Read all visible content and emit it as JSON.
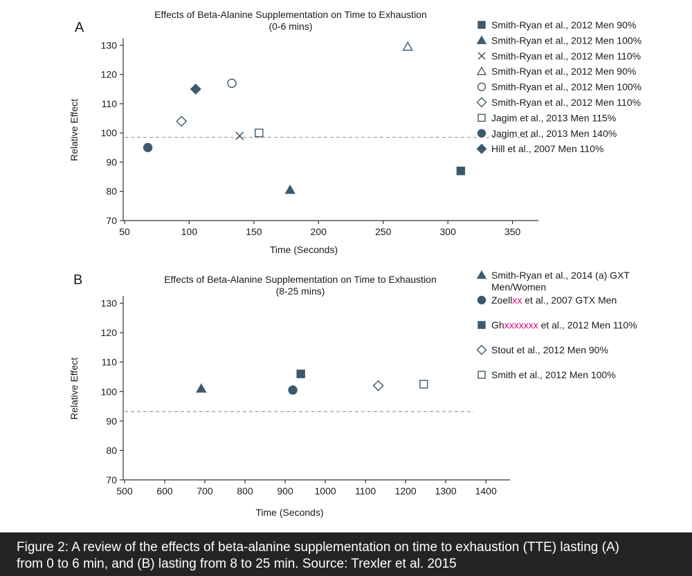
{
  "colors": {
    "marker": "#3c5a6e",
    "redacted": "#e0007a",
    "axis": "#333333",
    "reference_line": "#9a9a9a",
    "caption_bg": "#242424"
  },
  "chart_data": [
    {
      "type": "scatter",
      "panel_label": "A",
      "title": "Effects of Beta-Alanine Supplementation on Time to Exhaustion",
      "subtitle": "(0-6 mins)",
      "xlabel": "Time (Seconds)",
      "ylabel": "Relative Effect",
      "xlim": [
        50,
        370
      ],
      "ylim": [
        70,
        132
      ],
      "xticks": [
        "50",
        "100",
        "150",
        "200",
        "250",
        "300",
        "350"
      ],
      "yticks": [
        "70",
        "80",
        "90",
        "100",
        "110",
        "120",
        "130"
      ],
      "reference_line": {
        "y": 98.5,
        "x_range": [
          50,
          368
        ],
        "style": "dashed"
      },
      "grid": false,
      "legend_position": "right",
      "series": [
        {
          "name": "Smith-Ryan et al., 2012 Men 90%",
          "marker": "square-filled",
          "points": [
            {
              "x": 310,
              "y": 87
            }
          ]
        },
        {
          "name": "Smith-Ryan et al., 2012 Men 100%",
          "marker": "triangle-filled",
          "points": [
            {
              "x": 178,
              "y": 80.5
            }
          ]
        },
        {
          "name": "Smith-Ryan et al., 2012 Men 110%",
          "marker": "x",
          "points": [
            {
              "x": 139,
              "y": 99
            }
          ]
        },
        {
          "name": "Smith-Ryan et al., 2012 Men 90%",
          "marker": "triangle-open",
          "points": [
            {
              "x": 269,
              "y": 129.5
            }
          ]
        },
        {
          "name": "Smith-Ryan et al., 2012 Men 100%",
          "marker": "circle-open",
          "points": [
            {
              "x": 133,
              "y": 117
            }
          ]
        },
        {
          "name": "Smith-Ryan et al., 2012 Men 110%",
          "marker": "diamond-open",
          "points": [
            {
              "x": 94,
              "y": 104
            }
          ]
        },
        {
          "name": "Jagim et al., 2013 Men 115%",
          "marker": "square-open",
          "points": [
            {
              "x": 154,
              "y": 100
            }
          ]
        },
        {
          "name": "Jagim et al., 2013 Men 140%",
          "marker": "circle-filled",
          "points": [
            {
              "x": 68,
              "y": 95
            }
          ]
        },
        {
          "name": "Hill et al., 2007 Men 110%",
          "marker": "diamond-filled",
          "points": [
            {
              "x": 105,
              "y": 115
            }
          ]
        }
      ]
    },
    {
      "type": "scatter",
      "panel_label": "B",
      "title": "Effects of Beta-Alanine Supplementation on Time to Exhaustion",
      "subtitle": "(8-25 mins)",
      "xlabel": "Time (Seconds)",
      "ylabel": "Relative Effect",
      "xlim": [
        500,
        1460
      ],
      "ylim": [
        70,
        132
      ],
      "xticks": [
        "500",
        "600",
        "700",
        "800",
        "900",
        "1000",
        "1100",
        "1200",
        "1300",
        "1400"
      ],
      "yticks": [
        "70",
        "80",
        "90",
        "100",
        "110",
        "120",
        "130"
      ],
      "reference_line": {
        "y": 93.2,
        "x_range": [
          500,
          1370
        ],
        "style": "dashed"
      },
      "grid": false,
      "legend_position": "right",
      "series": [
        {
          "name_parts": [
            {
              "text": "Smith-Ryan et al., 2014 (a) GXT"
            }
          ],
          "name_line2": "Men/Women",
          "marker": "triangle-filled",
          "points": [
            {
              "x": 691,
              "y": 101
            }
          ]
        },
        {
          "name_parts": [
            {
              "text": "Zoell"
            },
            {
              "text": "xx",
              "redacted": true
            },
            {
              "text": " et al., 2007 GTX Men"
            }
          ],
          "marker": "circle-filled",
          "points": [
            {
              "x": 919,
              "y": 100.5
            }
          ]
        },
        {
          "name_parts": [
            {
              "text": "Gh"
            },
            {
              "text": "xxxxxxx",
              "redacted": true
            },
            {
              "text": " et al., 2012 Men 110%"
            }
          ],
          "marker": "square-filled",
          "points": [
            {
              "x": 939,
              "y": 106
            }
          ]
        },
        {
          "name_parts": [
            {
              "text": "Stout et al., 2012 Men 90%"
            }
          ],
          "marker": "diamond-open",
          "points": [
            {
              "x": 1132,
              "y": 102
            }
          ]
        },
        {
          "name_parts": [
            {
              "text": "Smith et al., 2012 Men 100%"
            }
          ],
          "marker": "square-open",
          "points": [
            {
              "x": 1245,
              "y": 102.5
            }
          ]
        }
      ]
    }
  ],
  "caption": {
    "line1": "Figure 2: A review of the effects of beta-alanine supplementation on time to exhaustion (TTE) lasting (A)",
    "line2": "from 0 to 6 min, and (B) lasting from 8 to 25 min. Source: Trexler et al. 2015"
  }
}
